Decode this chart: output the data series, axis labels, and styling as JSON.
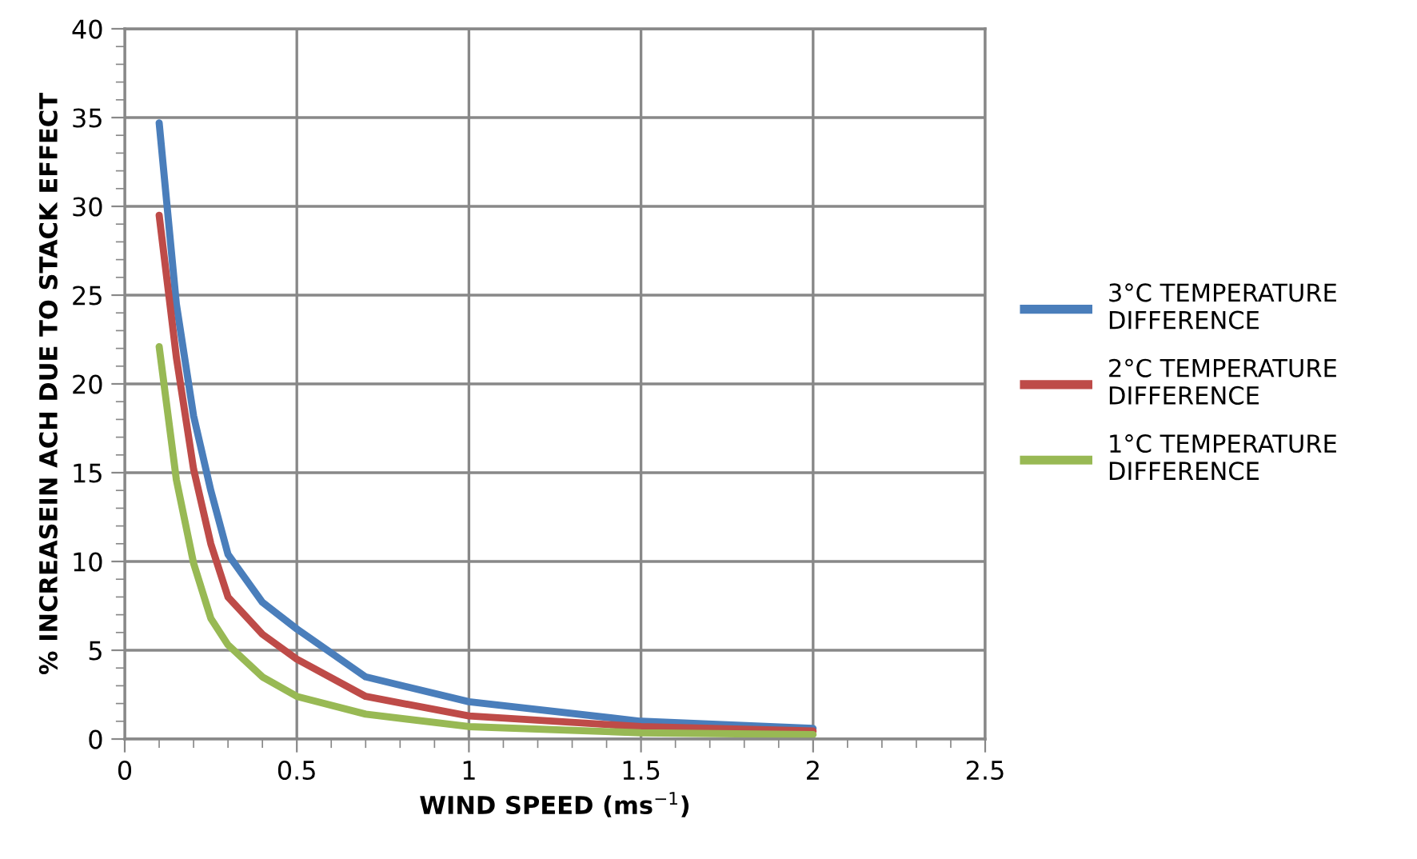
{
  "chart_data": {
    "type": "line",
    "xlabel": "WIND SPEED (ms$^{−1}$)",
    "ylabel": "% INCREASEIN ACH DUE TO STACK EFFECT",
    "xlim": [
      0,
      2.5
    ],
    "xticks": [
      0,
      0.5,
      1,
      1.5,
      2,
      2.5
    ],
    "ylim": [
      0,
      40
    ],
    "yticks": [
      0,
      5,
      10,
      15,
      20,
      25,
      30,
      35,
      40
    ],
    "grid": true,
    "legend": "right",
    "marker": "none",
    "line_style": "solid",
    "series": [
      {
        "name": "3°C TEMPERATURE\nDIFFERENCE",
        "color": "#4a7ebb",
        "x": [
          0.1,
          0.15,
          0.2,
          0.25,
          0.3,
          0.4,
          0.5,
          0.7,
          1,
          1.5,
          2
        ],
        "values": [
          34.7,
          24.5,
          18.2,
          14.0,
          10.4,
          7.7,
          6.2,
          3.5,
          2.1,
          1.0,
          0.6
        ]
      },
      {
        "name": "2°C TEMPERATURE\nDIFFERENCE",
        "color": "#be4b48",
        "x": [
          0.1,
          0.15,
          0.2,
          0.25,
          0.3,
          0.4,
          0.5,
          0.7,
          1,
          1.5,
          2
        ],
        "values": [
          29.5,
          21.5,
          15.2,
          11.0,
          8.0,
          5.9,
          4.5,
          2.4,
          1.3,
          0.7,
          0.45
        ]
      },
      {
        "name": "1°C TEMPERATURE\nDIFFERENCE",
        "color": "#98b954",
        "x": [
          0.1,
          0.15,
          0.2,
          0.25,
          0.3,
          0.4,
          0.5,
          0.7,
          1,
          1.5,
          2
        ],
        "values": [
          22.1,
          14.6,
          9.9,
          6.8,
          5.3,
          3.5,
          2.4,
          1.4,
          0.7,
          0.35,
          0.25
        ]
      }
    ]
  }
}
